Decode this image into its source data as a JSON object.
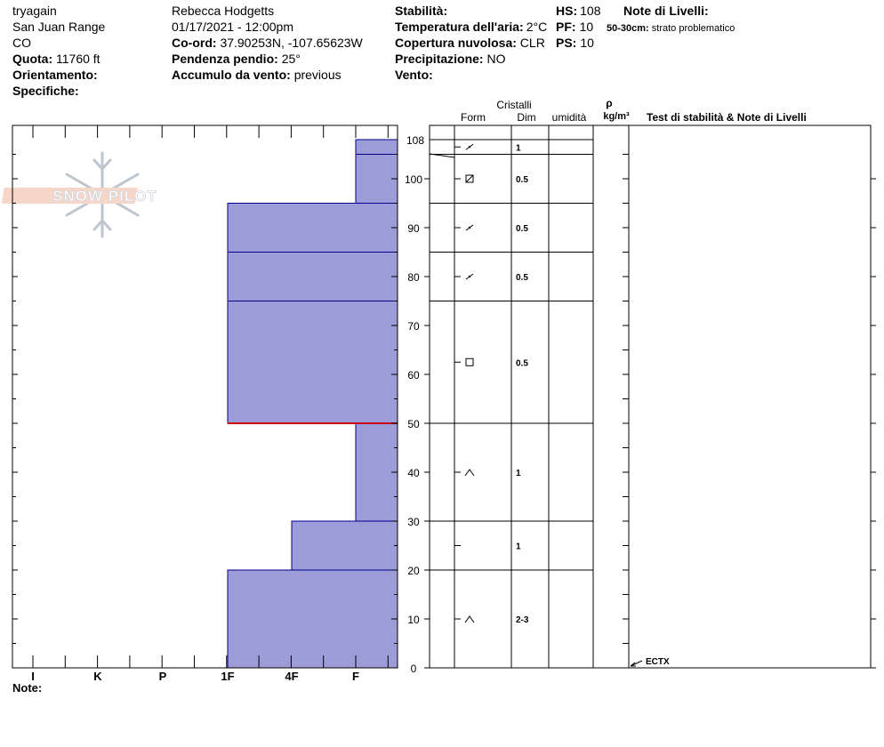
{
  "header": {
    "observer": "tryagain",
    "range": "San Juan Range",
    "state": "CO",
    "elevation_label": "Quota:",
    "elevation_value": "11760 ft",
    "aspect_label": "Orientamento:",
    "specifics_label": "Specifiche:",
    "name": "Rebecca Hodgetts",
    "datetime": "01/17/2021 - 12:00pm",
    "coord_label": "Co-ord:",
    "coord_value": "37.90253N, -107.65623W",
    "slope_label": "Pendenza pendio:",
    "slope_value": "25°",
    "wind_loading_label": "Accumulo da vento:",
    "wind_loading_value": "previous",
    "stability_label": "Stabilità:",
    "air_temp_label": "Temperatura dell'aria:",
    "air_temp_value": "2°C",
    "sky_label": "Copertura nuvolosa:",
    "sky_value": "CLR",
    "precip_label": "Precipitazione:",
    "precip_value": "NO",
    "wind_label": "Vento:",
    "hs_label": "HS:",
    "hs_value": "108",
    "pf_label": "PF:",
    "pf_value": "10",
    "ps_label": "PS:",
    "ps_value": "10",
    "layer_notes_label": "Note di Livelli:",
    "layer_note_range": "50-30cm:",
    "layer_note_text": "strato problematico"
  },
  "columns": {
    "crystals": "Cristalli",
    "form": "Form",
    "dim": "Dim",
    "moisture": "umidità",
    "rho": "ρ",
    "density_unit": "kg/m³",
    "tests": "Test di stabilità & Note di Livelli"
  },
  "footer": {
    "notes_label": "Note:"
  },
  "logo_text": "SNOW PILOT",
  "colors": {
    "layer_fill": "#9c9cd8",
    "layer_border": "#00008b",
    "weak_layer": "#cc0000"
  },
  "chart_data": {
    "type": "snow-profile",
    "y_axis": {
      "min": 0,
      "max": 108,
      "ticks": [
        0,
        10,
        20,
        30,
        40,
        50,
        60,
        70,
        80,
        90,
        100
      ],
      "top_label": "108"
    },
    "hardness_scale": [
      "I",
      "K",
      "P",
      "1F",
      "4F",
      "F"
    ],
    "layers": [
      {
        "top": 108,
        "bottom": 105,
        "hardness": "F",
        "form": "precip-particle",
        "dim": "1"
      },
      {
        "top": 105,
        "bottom": 95,
        "hardness": "F",
        "form": "surface-hoar-box",
        "dim": "0.5"
      },
      {
        "top": 95,
        "bottom": 85,
        "hardness": "1F",
        "form": "precip-particle",
        "dim": "0.5"
      },
      {
        "top": 85,
        "bottom": 75,
        "hardness": "1F",
        "form": "precip-particle",
        "dim": "0.5"
      },
      {
        "top": 75,
        "bottom": 50,
        "hardness": "1F",
        "form": "faceted-square",
        "dim": "0.5"
      },
      {
        "top": 50,
        "bottom": 30,
        "hardness": "F",
        "form": "depth-hoar",
        "dim": "1"
      },
      {
        "top": 30,
        "bottom": 20,
        "hardness": "4F",
        "form": "",
        "dim": "1"
      },
      {
        "top": 20,
        "bottom": 0,
        "hardness": "1F",
        "form": "depth-hoar",
        "dim": "2-3"
      }
    ],
    "weak_layer_depth": 50,
    "stability_tests": [
      {
        "label": "ECTX",
        "depth": 0
      }
    ]
  }
}
